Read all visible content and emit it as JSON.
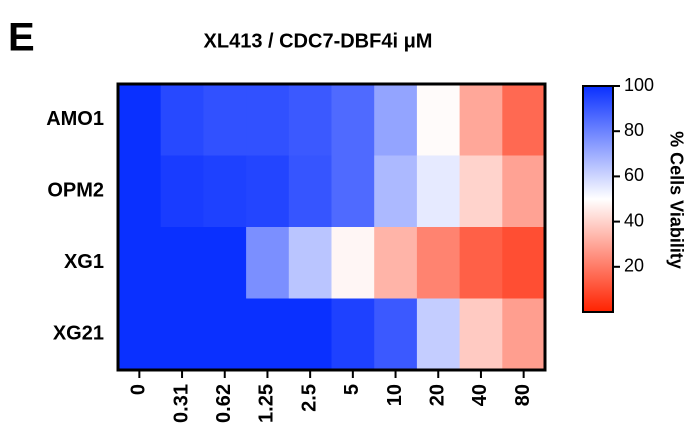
{
  "chart_data": {
    "type": "heatmap",
    "panel_label": "E",
    "title": "XL413 / CDC7-DBF4i μM",
    "categories": [
      "0",
      "0.31",
      "0.62",
      "1.25",
      "2.5",
      "5",
      "10",
      "20",
      "40",
      "80"
    ],
    "rows": [
      "AMO1",
      "OPM2",
      "XG1",
      "XG21"
    ],
    "values": [
      [
        100,
        94,
        92,
        92,
        90,
        86,
        72,
        49,
        30,
        16
      ],
      [
        100,
        97,
        96,
        95,
        91,
        86,
        67,
        55,
        40,
        29
      ],
      [
        100,
        100,
        100,
        77,
        64,
        48,
        33,
        22,
        14,
        10
      ],
      [
        100,
        100,
        100,
        100,
        100,
        96,
        90,
        62,
        38,
        28
      ]
    ],
    "zlim": [
      0,
      100
    ],
    "zticks": [
      20,
      40,
      60,
      80,
      100
    ],
    "colorbar_label": "% Cells Viability",
    "colors": {
      "low": "#ff2200",
      "mid": "#ffffff",
      "high": "#0a30ff"
    }
  }
}
